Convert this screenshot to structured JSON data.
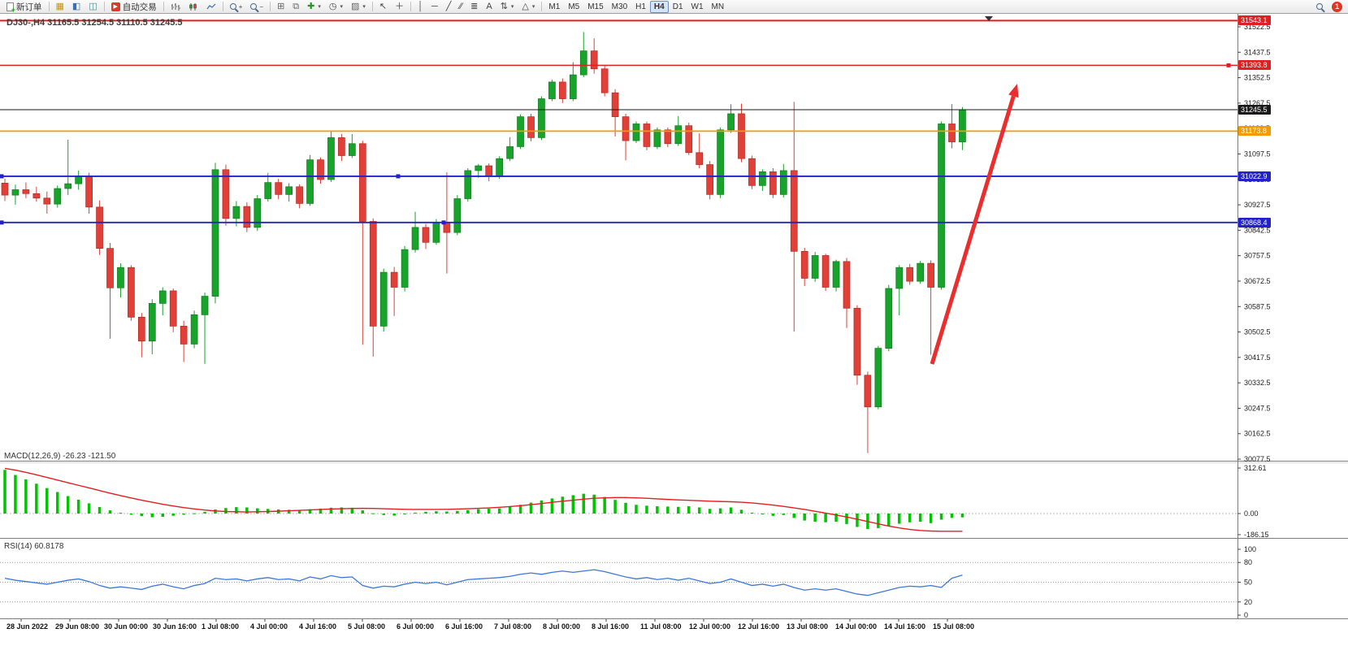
{
  "toolbar": {
    "new_order": "新订单",
    "auto_trading": "自动交易",
    "timeframes": [
      "M1",
      "M5",
      "M15",
      "M30",
      "H1",
      "H4",
      "D1",
      "W1",
      "MN"
    ],
    "active_timeframe": "H4",
    "notification_badge": "1",
    "icons": [
      "new-order-icon",
      "market-watch-icon",
      "data-window-icon",
      "navigator-icon",
      "autotrading-icon",
      "bar-chart-icon",
      "candlestick-icon",
      "line-chart-icon",
      "zoom-in-icon",
      "zoom-out-icon",
      "tile-windows-icon",
      "cascade-windows-icon",
      "indicators-icon",
      "period-icon",
      "cursor-icon",
      "crosshair-icon",
      "vertical-line-icon",
      "horizontal-line-icon",
      "trendline-icon",
      "channel-icon",
      "fibonacci-icon",
      "text-icon",
      "arrows-icon",
      "shapes-icon",
      "search-icon"
    ]
  },
  "chart": {
    "title": "DJ30-,H4 31165.5 31254.5 31110.5 31245.5",
    "symbol": "DJ30-",
    "timeframe": "H4",
    "open": "31165.5",
    "high": "31254.5",
    "low": "31110.5",
    "close": "31245.5"
  },
  "price_axis": {
    "labels": [
      "31522.5",
      "31437.5",
      "31352.5",
      "31267.5",
      "31182.5",
      "31097.5",
      "31012.5",
      "30927.5",
      "30842.5",
      "30757.5",
      "30672.5",
      "30587.5",
      "30502.5",
      "30417.5",
      "30332.5",
      "30247.5",
      "30162.5",
      "30077.5"
    ]
  },
  "price_tags": [
    {
      "value": "31543.1",
      "price": 31543.1,
      "color": "#E02020"
    },
    {
      "value": "31393.8",
      "price": 31393.8,
      "color": "#E02020"
    },
    {
      "value": "31245.5",
      "price": 31245.5,
      "color": "#1A1A1A"
    },
    {
      "value": "31173.8",
      "price": 31173.8,
      "color": "#F59B00"
    },
    {
      "value": "31022.9",
      "price": 31022.9,
      "color": "#2222CC"
    },
    {
      "value": "30868.4",
      "price": 30868.4,
      "color": "#2222CC"
    }
  ],
  "hlines": [
    {
      "price": 31543.1,
      "color": "#E02020",
      "width": 2,
      "handles": []
    },
    {
      "price": 31393.8,
      "color": "#E02020",
      "width": 1.6,
      "handles": [
        1512
      ]
    },
    {
      "price": 31245.5,
      "color": "#1A1A1A",
      "width": 1,
      "handles": []
    },
    {
      "price": 31173.8,
      "color": "#F59B00",
      "width": 1.8,
      "handles": []
    },
    {
      "price": 31022.9,
      "color": "#2222CC",
      "width": 1.8,
      "handles": [
        2,
        490
      ]
    },
    {
      "price": 30868.4,
      "color": "#2222CC",
      "width": 1.8,
      "handles": [
        2,
        546
      ]
    }
  ],
  "time_axis": [
    "28 Jun 2022",
    "29 Jun 08:00",
    "30 Jun 00:00",
    "30 Jun 16:00",
    "1 Jul 08:00",
    "4 Jul 00:00",
    "4 Jul 16:00",
    "5 Jul 08:00",
    "6 Jul 00:00",
    "6 Jul 16:00",
    "7 Jul 08:00",
    "8 Jul 00:00",
    "8 Jul 16:00",
    "11 Jul 08:00",
    "12 Jul 00:00",
    "12 Jul 16:00",
    "13 Jul 08:00",
    "14 Jul 00:00",
    "14 Jul 16:00",
    "15 Jul 08:00"
  ],
  "indicators": {
    "macd": {
      "label": "MACD(12,26,9) -26.23 -121.50",
      "values": [
        "-26.23",
        "-121.50"
      ],
      "scale": [
        "312.61",
        "0.00",
        "-186.15"
      ]
    },
    "rsi": {
      "label": "RSI(14) 60.8178",
      "value": "60.8178",
      "scale": [
        "100",
        "80",
        "50",
        "20",
        "0"
      ]
    }
  },
  "annotation_arrow": {
    "from": [
      1147,
      431
    ],
    "to": [
      1252,
      86
    ],
    "color": "#EA2D2D",
    "width": 5
  },
  "chart_data": {
    "type": "candlestick",
    "symbol": "DJ30-",
    "period": "H4",
    "price_range": [
      30077.5,
      31522.5
    ],
    "colors": {
      "up": "#18A32A",
      "down": "#E04038",
      "up_edge": "#0E7A1E",
      "down_edge": "#B02A24",
      "macd_hist": "#00C400",
      "macd_signal": "#E02020",
      "rsi": "#3C78DC"
    },
    "candles": [
      [
        31000,
        31015,
        30940,
        30960
      ],
      [
        30960,
        30995,
        30928,
        30978
      ],
      [
        30978,
        31002,
        30950,
        30965
      ],
      [
        30965,
        30988,
        30938,
        30950
      ],
      [
        30950,
        30972,
        30898,
        30930
      ],
      [
        30930,
        30992,
        30918,
        30982
      ],
      [
        30982,
        31145,
        30960,
        30998
      ],
      [
        30998,
        31042,
        30978,
        31022
      ],
      [
        31022,
        31035,
        30898,
        30920
      ],
      [
        30920,
        30942,
        30760,
        30782
      ],
      [
        30782,
        30800,
        30480,
        30650
      ],
      [
        30650,
        30732,
        30618,
        30718
      ],
      [
        30718,
        30726,
        30540,
        30552
      ],
      [
        30552,
        30566,
        30418,
        30472
      ],
      [
        30472,
        30612,
        30428,
        30598
      ],
      [
        30598,
        30652,
        30558,
        30640
      ],
      [
        30640,
        30648,
        30502,
        30522
      ],
      [
        30522,
        30540,
        30402,
        30462
      ],
      [
        30462,
        30574,
        30448,
        30560
      ],
      [
        30560,
        30634,
        30396,
        30622
      ],
      [
        30622,
        31068,
        30598,
        31045
      ],
      [
        31045,
        31062,
        30858,
        30882
      ],
      [
        30882,
        30940,
        30856,
        30922
      ],
      [
        30922,
        30936,
        30836,
        30852
      ],
      [
        30852,
        30960,
        30840,
        30948
      ],
      [
        30948,
        31034,
        30938,
        31002
      ],
      [
        31002,
        31014,
        30946,
        30962
      ],
      [
        30962,
        31000,
        30938,
        30988
      ],
      [
        30988,
        30996,
        30916,
        30932
      ],
      [
        30932,
        31094,
        30924,
        31078
      ],
      [
        31078,
        31086,
        30998,
        31012
      ],
      [
        31012,
        31176,
        31004,
        31152
      ],
      [
        31152,
        31164,
        31074,
        31092
      ],
      [
        31092,
        31164,
        31084,
        31132
      ],
      [
        31132,
        31142,
        30460,
        30872
      ],
      [
        30872,
        30882,
        30420,
        30522
      ],
      [
        30522,
        30714,
        30504,
        30702
      ],
      [
        30702,
        30720,
        30556,
        30652
      ],
      [
        30652,
        30790,
        30638,
        30778
      ],
      [
        30778,
        30904,
        30768,
        30852
      ],
      [
        30852,
        30864,
        30780,
        30802
      ],
      [
        30802,
        30880,
        30794,
        30868
      ],
      [
        30868,
        31036,
        30698,
        30835
      ],
      [
        30835,
        30960,
        30826,
        30948
      ],
      [
        30948,
        31050,
        30938,
        31042
      ],
      [
        31042,
        31064,
        31018,
        31058
      ],
      [
        31058,
        31066,
        31006,
        31022
      ],
      [
        31022,
        31090,
        31014,
        31082
      ],
      [
        31082,
        31154,
        31074,
        31122
      ],
      [
        31122,
        31230,
        31114,
        31222
      ],
      [
        31222,
        31232,
        31140,
        31152
      ],
      [
        31152,
        31290,
        31144,
        31282
      ],
      [
        31282,
        31346,
        31274,
        31338
      ],
      [
        31338,
        31350,
        31268,
        31282
      ],
      [
        31282,
        31404,
        31274,
        31362
      ],
      [
        31362,
        31505,
        31354,
        31442
      ],
      [
        31442,
        31484,
        31366,
        31382
      ],
      [
        31382,
        31394,
        31290,
        31302
      ],
      [
        31302,
        31314,
        31156,
        31222
      ],
      [
        31222,
        31232,
        31076,
        31142
      ],
      [
        31142,
        31206,
        31134,
        31198
      ],
      [
        31198,
        31206,
        31110,
        31122
      ],
      [
        31122,
        31186,
        31114,
        31178
      ],
      [
        31178,
        31186,
        31120,
        31132
      ],
      [
        31132,
        31224,
        31124,
        31192
      ],
      [
        31192,
        31202,
        31094,
        31102
      ],
      [
        31102,
        31166,
        31050,
        31062
      ],
      [
        31062,
        31074,
        30946,
        30962
      ],
      [
        30962,
        31186,
        30950,
        31178
      ],
      [
        31178,
        31264,
        31168,
        31232
      ],
      [
        31232,
        31266,
        31070,
        31082
      ],
      [
        31082,
        31092,
        30980,
        30992
      ],
      [
        30992,
        31046,
        30974,
        31038
      ],
      [
        31038,
        31050,
        30950,
        30962
      ],
      [
        30962,
        31064,
        30952,
        31042
      ],
      [
        31042,
        31272,
        30504,
        30772
      ],
      [
        30772,
        30784,
        30656,
        30682
      ],
      [
        30682,
        30770,
        30670,
        30758
      ],
      [
        30758,
        30764,
        30640,
        30652
      ],
      [
        30652,
        30744,
        30638,
        30738
      ],
      [
        30738,
        30750,
        30516,
        30582
      ],
      [
        30582,
        30592,
        30326,
        30358
      ],
      [
        30358,
        30370,
        30098,
        30252
      ],
      [
        30252,
        30456,
        30244,
        30448
      ],
      [
        30448,
        30660,
        30438,
        30648
      ],
      [
        30648,
        30726,
        30558,
        30718
      ],
      [
        30718,
        30730,
        30660,
        30672
      ],
      [
        30672,
        30740,
        30664,
        30732
      ],
      [
        30732,
        30742,
        30426,
        30652
      ],
      [
        30652,
        31206,
        30644,
        31198
      ],
      [
        31198,
        31264,
        31116,
        31138
      ],
      [
        31138,
        31254.5,
        31110.5,
        31245.5
      ]
    ],
    "macd": {
      "range": [
        -186.15,
        312.61
      ],
      "histogram": [
        300,
        265,
        235,
        205,
        175,
        148,
        120,
        95,
        70,
        45,
        22,
        5,
        -8,
        -18,
        -25,
        -22,
        -15,
        -8,
        2,
        12,
        28,
        38,
        44,
        42,
        36,
        32,
        28,
        26,
        24,
        30,
        34,
        40,
        42,
        40,
        22,
        2,
        -10,
        -14,
        -4,
        6,
        12,
        16,
        14,
        18,
        24,
        30,
        33,
        36,
        46,
        60,
        75,
        90,
        104,
        116,
        126,
        136,
        130,
        114,
        94,
        74,
        60,
        54,
        50,
        48,
        46,
        50,
        42,
        32,
        36,
        42,
        26,
        6,
        -6,
        -16,
        -10,
        -30,
        -48,
        -56,
        -60,
        -56,
        -72,
        -92,
        -106,
        -100,
        -86,
        -70,
        -60,
        -56,
        -66,
        -42,
        -30,
        -26.23
      ],
      "signal": [
        310,
        298,
        283,
        266,
        248,
        230,
        212,
        194,
        176,
        158,
        140,
        123,
        107,
        92,
        78,
        64,
        52,
        41,
        32,
        24,
        18,
        14,
        12,
        11,
        12,
        14,
        16,
        19,
        22,
        25,
        28,
        31,
        33,
        35,
        36,
        35,
        33,
        31,
        29,
        28,
        28,
        28,
        29,
        31,
        33,
        36,
        39,
        43,
        48,
        54,
        61,
        69,
        77,
        85,
        92,
        99,
        105,
        108,
        110,
        110,
        108,
        105,
        101,
        97,
        94,
        91,
        88,
        85,
        83,
        81,
        78,
        73,
        66,
        58,
        49,
        39,
        28,
        16,
        3,
        -10,
        -24,
        -39,
        -55,
        -71,
        -86,
        -99,
        -109,
        -116,
        -120,
        -122,
        -122,
        -121.5
      ]
    },
    "rsi": {
      "range": [
        0,
        100
      ],
      "levels": [
        80,
        50,
        20
      ],
      "values": [
        56,
        53,
        51,
        49,
        47,
        50,
        53,
        55,
        51,
        45,
        41,
        43,
        41,
        39,
        44,
        47,
        43,
        40,
        45,
        48,
        56,
        54,
        55,
        52,
        55,
        57,
        54,
        55,
        52,
        58,
        55,
        60,
        57,
        58,
        45,
        41,
        44,
        43,
        47,
        50,
        48,
        50,
        46,
        50,
        54,
        55,
        56,
        57,
        59,
        62,
        64,
        62,
        65,
        67,
        65,
        67,
        69,
        66,
        62,
        58,
        55,
        57,
        54,
        56,
        53,
        56,
        52,
        48,
        50,
        55,
        50,
        45,
        47,
        44,
        47,
        42,
        38,
        40,
        38,
        40,
        36,
        32,
        30,
        34,
        38,
        42,
        44,
        43,
        45,
        42,
        56,
        60.82
      ]
    }
  }
}
